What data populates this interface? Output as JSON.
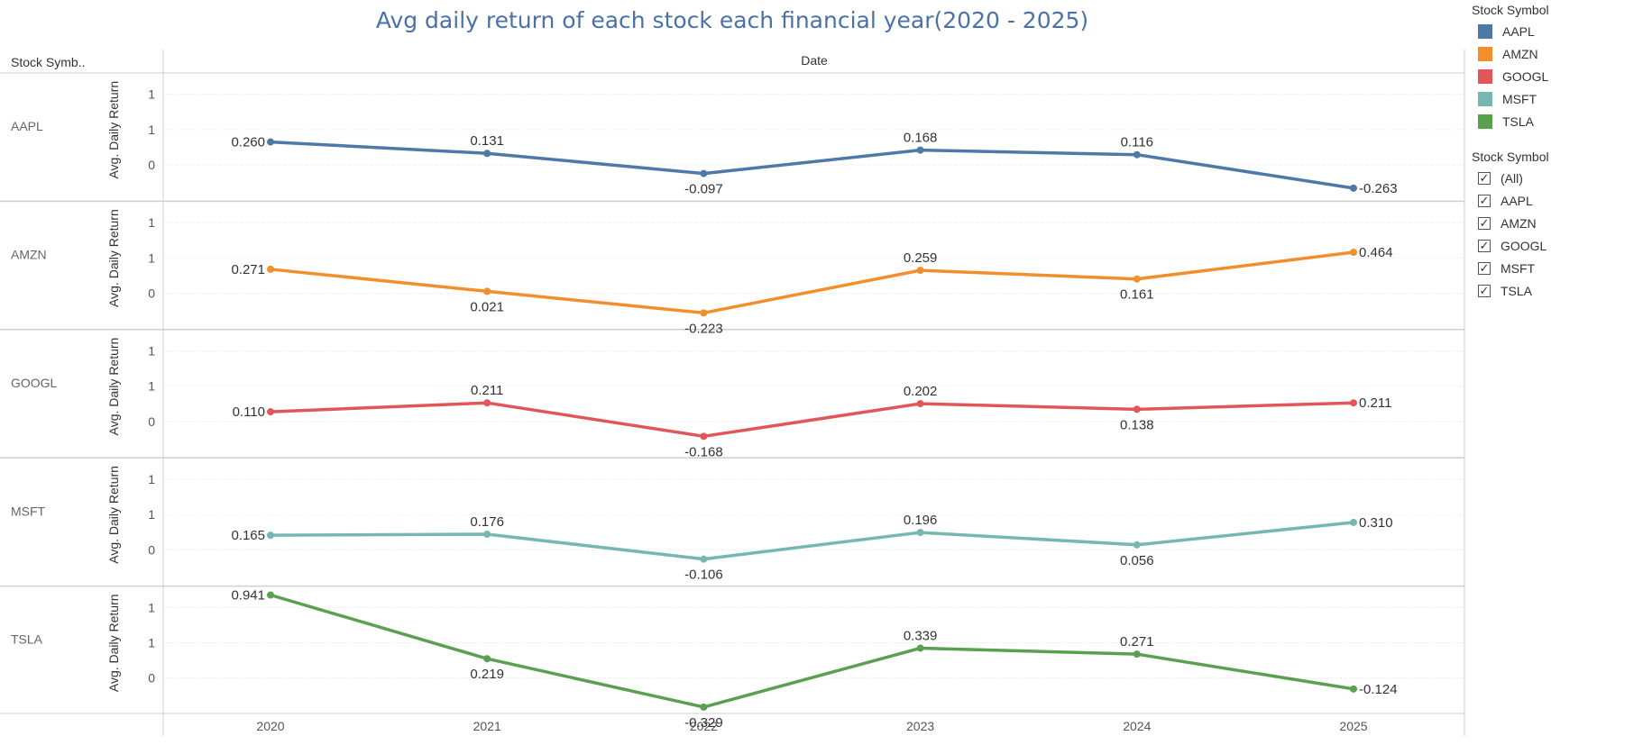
{
  "title": "Avg daily return of each stock each financial year(2020 - 2025)",
  "header": {
    "row_header": "Stock Symb..",
    "column_header": "Date"
  },
  "legend": {
    "title": "Stock Symbol",
    "items": [
      {
        "label": "AAPL",
        "color": "#4e79a7"
      },
      {
        "label": "AMZN",
        "color": "#f28e2b"
      },
      {
        "label": "GOOGL",
        "color": "#e15759"
      },
      {
        "label": "MSFT",
        "color": "#76b7b2"
      },
      {
        "label": "TSLA",
        "color": "#59a14f"
      }
    ]
  },
  "filter": {
    "title": "Stock Symbol",
    "items": [
      {
        "label": "(All)",
        "checked": true
      },
      {
        "label": "AAPL",
        "checked": true
      },
      {
        "label": "AMZN",
        "checked": true
      },
      {
        "label": "GOOGL",
        "checked": true
      },
      {
        "label": "MSFT",
        "checked": true
      },
      {
        "label": "TSLA",
        "checked": true
      }
    ]
  },
  "chart_data": {
    "type": "line",
    "title": "Avg daily return of each stock each financial year(2020 - 2025)",
    "xlabel": "Date",
    "ylabel": "Avg. Daily Return",
    "x": [
      "2020",
      "2021",
      "2022",
      "2023",
      "2024",
      "2025"
    ],
    "y_tick_labels": [
      "1",
      "1",
      "0"
    ],
    "ylim": [
      -0.33,
      0.94
    ],
    "grid": true,
    "legend_position": "right",
    "series": [
      {
        "name": "AAPL",
        "color": "#4e79a7",
        "values": [
          0.26,
          0.131,
          -0.097,
          0.168,
          0.116,
          -0.263
        ],
        "labels": [
          "0.260",
          "0.131",
          "-0.097",
          "0.168",
          "0.116",
          "-0.263"
        ]
      },
      {
        "name": "AMZN",
        "color": "#f28e2b",
        "values": [
          0.271,
          0.021,
          -0.223,
          0.259,
          0.161,
          0.464
        ],
        "labels": [
          "0.271",
          "0.021",
          "-0.223",
          "0.259",
          "0.161",
          "0.464"
        ]
      },
      {
        "name": "GOOGL",
        "color": "#e15759",
        "values": [
          0.11,
          0.211,
          -0.168,
          0.202,
          0.138,
          0.211
        ],
        "labels": [
          "0.110",
          "0.211",
          "-0.168",
          "0.202",
          "0.138",
          "0.211"
        ]
      },
      {
        "name": "MSFT",
        "color": "#76b7b2",
        "values": [
          0.165,
          0.176,
          -0.106,
          0.196,
          0.056,
          0.31
        ],
        "labels": [
          "0.165",
          "0.176",
          "-0.106",
          "0.196",
          "0.056",
          "0.310"
        ]
      },
      {
        "name": "TSLA",
        "color": "#59a14f",
        "values": [
          0.941,
          0.219,
          -0.329,
          0.339,
          0.271,
          -0.124
        ],
        "labels": [
          "0.941",
          "0.219",
          "-0.329",
          "0.339",
          "0.271",
          "-0.124"
        ]
      }
    ]
  }
}
